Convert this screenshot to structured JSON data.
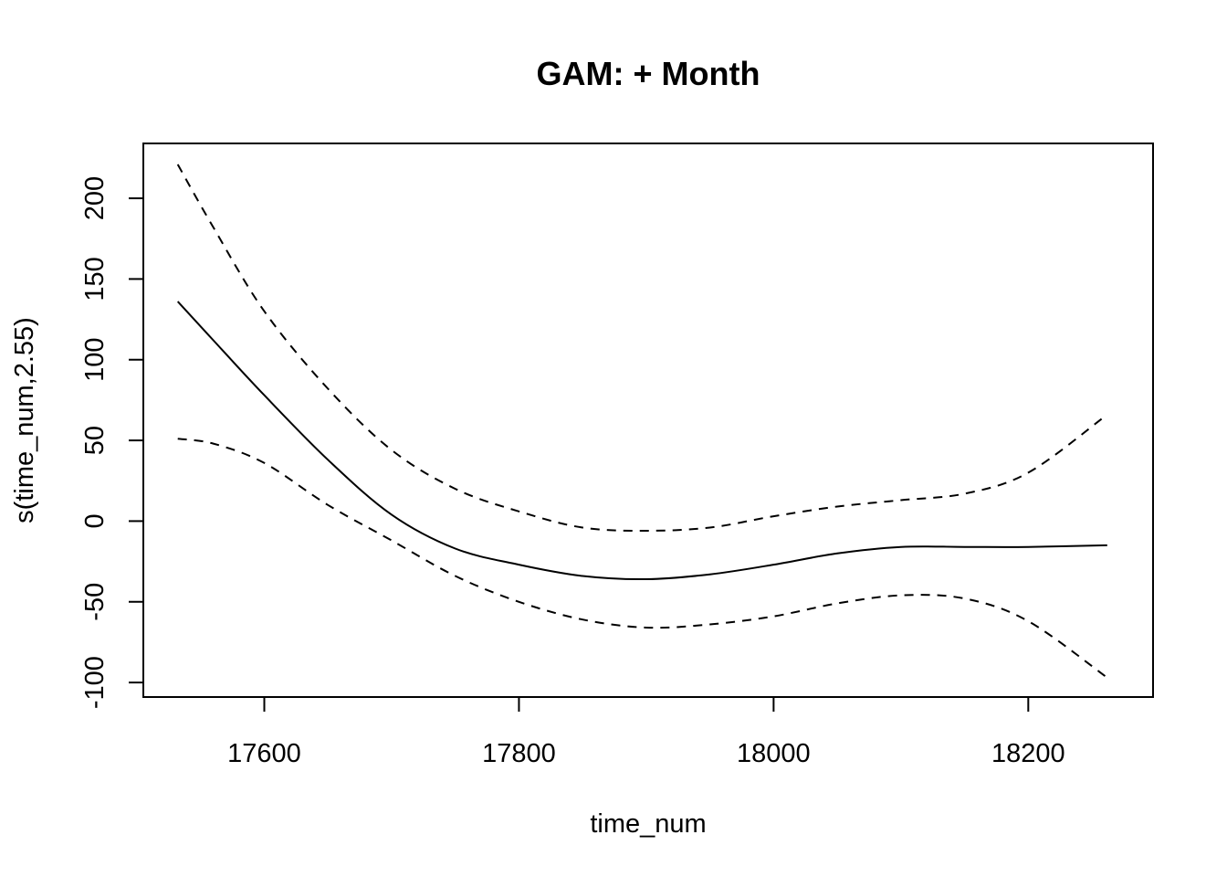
{
  "chart_data": {
    "type": "line",
    "title": "GAM: + Month",
    "xlabel": "time_num",
    "ylabel": "s(time_num,2.55)",
    "xlim": [
      17505,
      18298
    ],
    "ylim": [
      -109,
      234
    ],
    "xticks": [
      17600,
      17800,
      18000,
      18200
    ],
    "yticks": [
      -100,
      -50,
      0,
      50,
      100,
      150,
      200
    ],
    "xtick_labels": [
      "17600",
      "17800",
      "18000",
      "18200"
    ],
    "ytick_labels": [
      "-100",
      "-50",
      "0",
      "50",
      "100",
      "150",
      "200"
    ],
    "grid": false,
    "series": [
      {
        "style": "solid",
        "x": [
          17532,
          17560,
          17600,
          17650,
          17700,
          17750,
          17800,
          17850,
          17900,
          17950,
          18000,
          18050,
          18100,
          18150,
          18200,
          18262
        ],
        "y": [
          136,
          112,
          78,
          38,
          4,
          -17,
          -27,
          -34,
          -36,
          -33,
          -27,
          -20,
          -16,
          -16,
          -16,
          -15
        ]
      },
      {
        "style": "dashed",
        "x": [
          17532,
          17560,
          17600,
          17650,
          17700,
          17750,
          17800,
          17850,
          17900,
          17950,
          18000,
          18050,
          18100,
          18150,
          18200,
          18262
        ],
        "y": [
          221,
          182,
          130,
          82,
          44,
          20,
          6,
          -4,
          -6,
          -4,
          3,
          9,
          13,
          17,
          30,
          66
        ]
      },
      {
        "style": "dashed",
        "x": [
          17532,
          17560,
          17600,
          17650,
          17700,
          17750,
          17800,
          17850,
          17900,
          17950,
          18000,
          18050,
          18100,
          18150,
          18200,
          18262
        ],
        "y": [
          51,
          48,
          36,
          10,
          -12,
          -34,
          -50,
          -61,
          -66,
          -64,
          -59,
          -51,
          -46,
          -48,
          -62,
          -97
        ]
      }
    ]
  }
}
